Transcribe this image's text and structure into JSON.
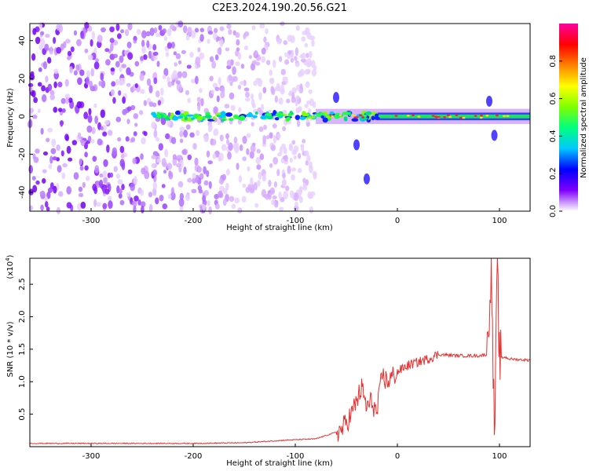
{
  "title": "C2E3.2024.190.20.56.G21",
  "chart_data": [
    {
      "type": "heatmap",
      "xlabel": "Height of straight line (km)",
      "ylabel": "Frequency (Hz)",
      "xlim": [
        -360,
        130
      ],
      "ylim": [
        -50,
        49
      ],
      "xticks": [
        -300,
        -200,
        -100,
        0,
        100
      ],
      "xtick_labels": [
        "-300",
        "-200",
        "-100",
        "0",
        "100"
      ],
      "yticks": [
        -40,
        -20,
        0,
        20,
        40
      ],
      "ytick_labels": [
        "-40",
        "-20",
        "0",
        "20",
        "40"
      ],
      "colorbar": {
        "label": "Normalized spectral amplitude",
        "range": [
          0,
          1
        ],
        "ticks": [
          0.0,
          0.2,
          0.4,
          0.6,
          0.8
        ],
        "tick_labels": [
          "0.0",
          "0.2",
          "0.4",
          "0.6",
          "0.8"
        ],
        "colormap": [
          "#ffffff",
          "#7f00ff",
          "#0000ff",
          "#00c8ff",
          "#00ff80",
          "#80ff00",
          "#ffff00",
          "#ff8000",
          "#ff0000",
          "#ff00a0"
        ]
      },
      "features": {
        "scatter_region_x": [
          -360,
          -80
        ],
        "carrier_frequency_hz": 0,
        "strong_segment_x": [
          -20,
          110
        ],
        "branch_points": [
          [
            -60,
            10
          ],
          [
            -40,
            -15
          ],
          [
            -30,
            -33
          ],
          [
            90,
            8
          ],
          [
            95,
            -10
          ]
        ]
      }
    },
    {
      "type": "line",
      "xlabel": "Height of straight line (km)",
      "ylabel": "SNR (10 * v/v)",
      "y_multiplier": "(x10",
      "y_multiplier_exp": "4",
      "xlim": [
        -360,
        130
      ],
      "ylim": [
        0,
        29000
      ],
      "xticks": [
        -300,
        -200,
        -100,
        0,
        100
      ],
      "xtick_labels": [
        "-300",
        "-200",
        "-100",
        "0",
        "100"
      ],
      "yticks": [
        5000,
        10000,
        15000,
        20000,
        25000
      ],
      "ytick_labels": [
        "0.5",
        "1.0",
        "1.5",
        "2.0",
        "2.5"
      ],
      "color": "#e83030",
      "series": [
        {
          "x": [
            -360,
            -300,
            -200,
            -150,
            -110,
            -80,
            -55,
            -45,
            -35,
            -30,
            -25,
            -20,
            -15,
            -10,
            0,
            10,
            20,
            30,
            40,
            60,
            80,
            88,
            92,
            95,
            98,
            100,
            105,
            110,
            130
          ],
          "y": [
            500,
            500,
            500,
            600,
            1000,
            1200,
            2500,
            5000,
            9000,
            6000,
            7000,
            5000,
            11000,
            10000,
            11500,
            12500,
            13000,
            13500,
            14200,
            14000,
            14000,
            14200,
            29000,
            500,
            27000,
            13500,
            13800,
            13500,
            13300
          ]
        }
      ]
    }
  ]
}
